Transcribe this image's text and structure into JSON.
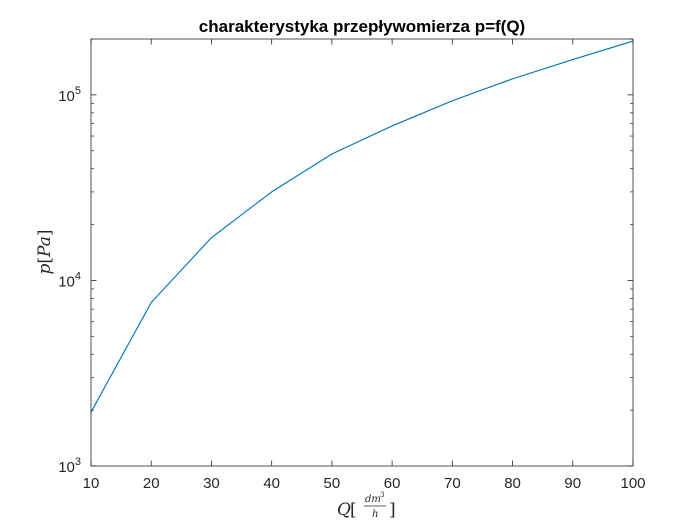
{
  "chart_data": {
    "type": "line",
    "title": "charakterystyka przepływomierza p=f(Q)",
    "xlabel": "Q[dm^3/h]",
    "ylabel": "p[Pa]",
    "x_scale": "linear",
    "y_scale": "log",
    "xlim": [
      10,
      100
    ],
    "ylim": [
      1000,
      200000
    ],
    "grid": false,
    "x_ticks": [
      "10",
      "20",
      "30",
      "40",
      "50",
      "60",
      "70",
      "80",
      "90",
      "100"
    ],
    "y_ticks": [
      {
        "base": "10",
        "exp": "3",
        "value": 1000
      },
      {
        "base": "10",
        "exp": "4",
        "value": 10000
      },
      {
        "base": "10",
        "exp": "5",
        "value": 100000
      }
    ],
    "series": [
      {
        "color": "#0072BD",
        "x": [
          10,
          20,
          30,
          40,
          50,
          60,
          70,
          80,
          90,
          100
        ],
        "y": [
          1950,
          7600,
          17000,
          30000,
          48000,
          68000,
          93000,
          122000,
          155000,
          195000
        ]
      }
    ]
  },
  "axis_label_parts": {
    "x_var": "Q",
    "x_open": "[",
    "x_num": "dm",
    "x_sup": "3",
    "x_den": "h",
    "x_close": "]",
    "y_var": "p",
    "y_open": "[",
    "y_unit": "Pa",
    "y_close": "]"
  }
}
